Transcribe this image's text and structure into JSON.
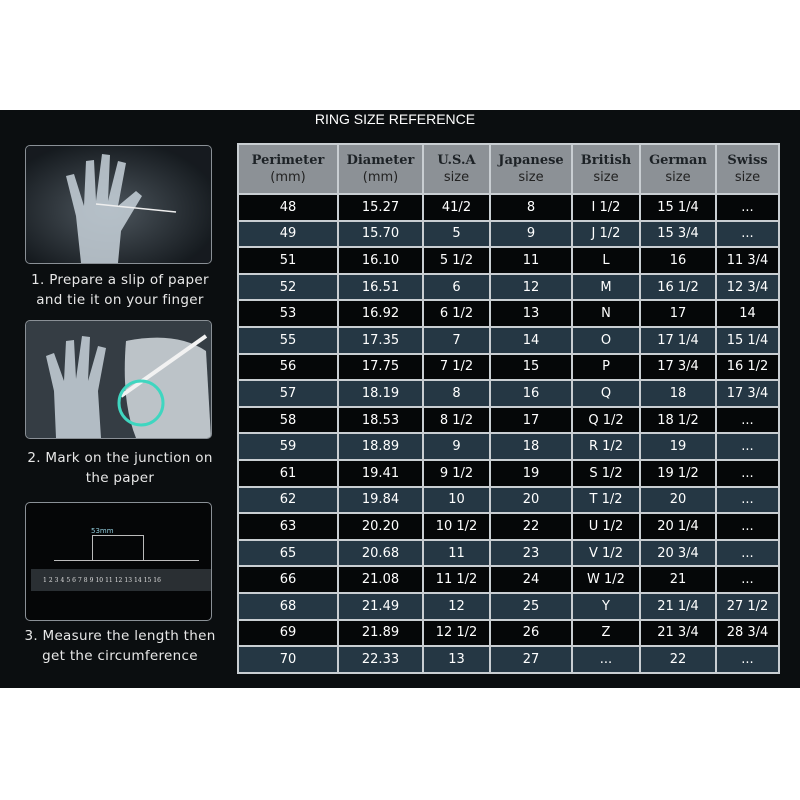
{
  "title": "RING SIZE REFERENCE",
  "steps": [
    {
      "line1": "1. Prepare a slip of paper",
      "line2": "and tie it on your finger"
    },
    {
      "line1": "2. Mark on the junction on",
      "line2": "the paper"
    },
    {
      "line1": "3. Measure the length then",
      "line2": "get the circumference"
    }
  ],
  "ruler": {
    "measure_label": "53mm",
    "numbers": [
      "1",
      "2",
      "3",
      "4",
      "5",
      "6",
      "7",
      "8",
      "9",
      "10",
      "11",
      "12",
      "13",
      "14",
      "15",
      "16"
    ]
  },
  "table": {
    "headers": [
      {
        "name": "Perimeter",
        "sub": "(mm)"
      },
      {
        "name": "Diameter",
        "sub": "(mm)"
      },
      {
        "name": "U.S.A",
        "sub": "size"
      },
      {
        "name": "Japanese",
        "sub": "size"
      },
      {
        "name": "British",
        "sub": "size"
      },
      {
        "name": "German",
        "sub": "size"
      },
      {
        "name": "Swiss",
        "sub": "size"
      }
    ],
    "rows": [
      [
        "48",
        "15.27",
        "41/2",
        "8",
        "I 1/2",
        "15 1/4",
        "..."
      ],
      [
        "49",
        "15.70",
        "5",
        "9",
        "J 1/2",
        "15 3/4",
        "..."
      ],
      [
        "51",
        "16.10",
        "5 1/2",
        "11",
        "L",
        "16",
        "11 3/4"
      ],
      [
        "52",
        "16.51",
        "6",
        "12",
        "M",
        "16 1/2",
        "12 3/4"
      ],
      [
        "53",
        "16.92",
        "6 1/2",
        "13",
        "N",
        "17",
        "14"
      ],
      [
        "55",
        "17.35",
        "7",
        "14",
        "O",
        "17 1/4",
        "15 1/4"
      ],
      [
        "56",
        "17.75",
        "7 1/2",
        "15",
        "P",
        "17 3/4",
        "16 1/2"
      ],
      [
        "57",
        "18.19",
        "8",
        "16",
        "Q",
        "18",
        "17 3/4"
      ],
      [
        "58",
        "18.53",
        "8 1/2",
        "17",
        "Q  1/2",
        "18 1/2",
        "..."
      ],
      [
        "59",
        "18.89",
        "9",
        "18",
        "R 1/2",
        "19",
        "..."
      ],
      [
        "61",
        "19.41",
        "9 1/2",
        "19",
        "S 1/2",
        "19 1/2",
        "..."
      ],
      [
        "62",
        "19.84",
        "10",
        "20",
        "T 1/2",
        "20",
        "..."
      ],
      [
        "63",
        "20.20",
        "10 1/2",
        "22",
        "U 1/2",
        "20 1/4",
        "..."
      ],
      [
        "65",
        "20.68",
        "11",
        "23",
        "V 1/2",
        "20 3/4",
        "..."
      ],
      [
        "66",
        "21.08",
        "11 1/2",
        "24",
        "W 1/2",
        "21",
        "..."
      ],
      [
        "68",
        "21.49",
        "12",
        "25",
        "Y",
        "21 1/4",
        "27 1/2"
      ],
      [
        "69",
        "21.89",
        "12 1/2",
        "26",
        "Z",
        "21 3/4",
        "28 3/4"
      ],
      [
        "70",
        "22.33",
        "13",
        "27",
        "...",
        "22",
        "..."
      ]
    ]
  },
  "colors": {
    "background": "#0b0e10",
    "header": "#8c9196",
    "row_dark": "#050708",
    "row_blue": "#253744",
    "highlight_circle": "#3fd6c0"
  }
}
